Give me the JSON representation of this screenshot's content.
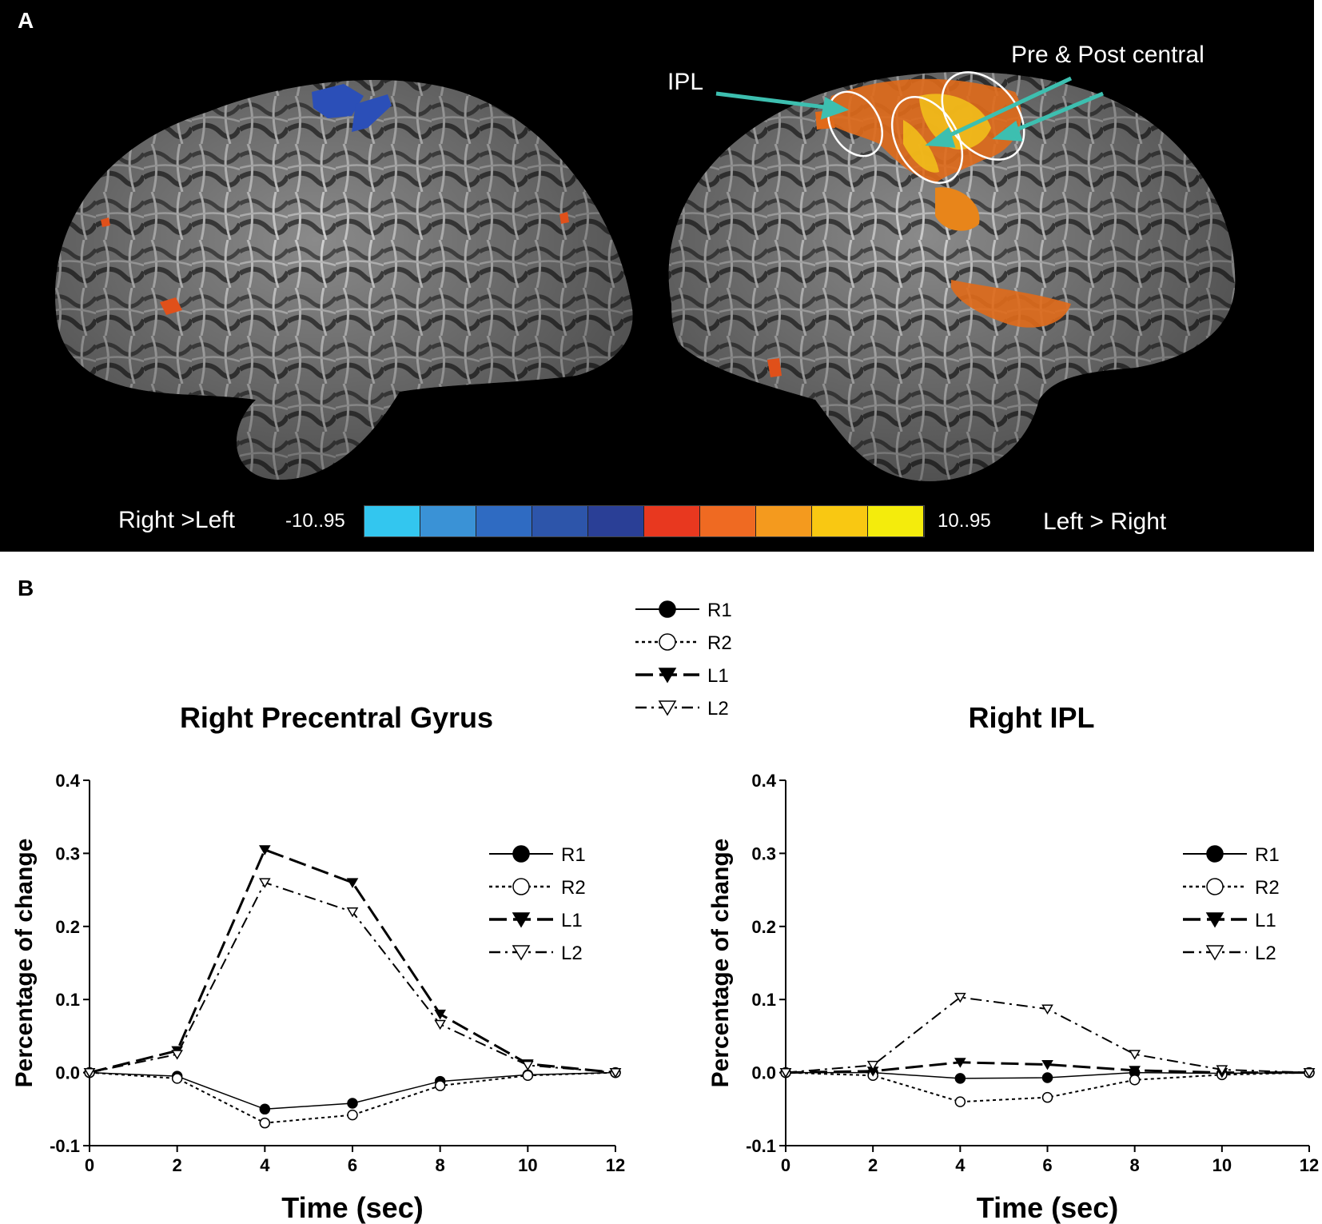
{
  "panels": {
    "a_letter": "A",
    "b_letter": "B"
  },
  "panel_a": {
    "annotations": {
      "ipl": "IPL",
      "pre_post": "Pre & Post central"
    },
    "colorbar": {
      "left_label": "Right >Left",
      "min_value": "-10..95",
      "max_value": "10..95",
      "right_label": "Left > Right",
      "colors": [
        "#33c6ef",
        "#3a92d6",
        "#2f6bc2",
        "#2d55aa",
        "#2a3f96",
        "#e8381f",
        "#ef6a22",
        "#f49a1e",
        "#f9c812",
        "#f4ec0c"
      ]
    },
    "activation_colors": {
      "blue": "#2b4fb8",
      "orange": "#e06a1a",
      "yellow": "#f2c21a"
    },
    "arrow_color": "#3dbfb0"
  },
  "top_legend": [
    "R1",
    "R2",
    "L1",
    "L2"
  ],
  "chart_data": [
    {
      "type": "line",
      "title": "Right  Precentral Gyrus",
      "xlabel": "Time (sec)",
      "ylabel": "Percentage of change",
      "x": [
        0,
        2,
        4,
        6,
        8,
        10,
        12
      ],
      "xlim": [
        0,
        12
      ],
      "ylim": [
        -0.1,
        0.4
      ],
      "xticks": [
        "0",
        "2",
        "4",
        "6",
        "8",
        "10",
        "12"
      ],
      "yticks": [
        "-0.1",
        "0.0",
        "0.1",
        "0.2",
        "0.3",
        "0.4"
      ],
      "legend": "top-right",
      "series": [
        {
          "name": "R1",
          "values": [
            0,
            -0.005,
            -0.05,
            -0.042,
            -0.012,
            -0.003,
            0
          ]
        },
        {
          "name": "R2",
          "values": [
            0,
            -0.008,
            -0.069,
            -0.058,
            -0.018,
            -0.004,
            0
          ]
        },
        {
          "name": "L1",
          "values": [
            0,
            0.03,
            0.305,
            0.26,
            0.08,
            0.012,
            0
          ]
        },
        {
          "name": "L2",
          "values": [
            0,
            0.025,
            0.26,
            0.22,
            0.066,
            0.01,
            0
          ]
        }
      ]
    },
    {
      "type": "line",
      "title": "Right  IPL",
      "xlabel": "Time (sec)",
      "ylabel": "Percentage of change",
      "x": [
        0,
        2,
        4,
        6,
        8,
        10,
        12
      ],
      "xlim": [
        0,
        12
      ],
      "ylim": [
        -0.1,
        0.4
      ],
      "xticks": [
        "0",
        "2",
        "4",
        "6",
        "8",
        "10",
        "12"
      ],
      "yticks": [
        "-0.1",
        "0.0",
        "0.1",
        "0.2",
        "0.3",
        "0.4"
      ],
      "legend": "top-right",
      "series": [
        {
          "name": "R1",
          "values": [
            0,
            0,
            -0.008,
            -0.007,
            0,
            -0.001,
            0
          ]
        },
        {
          "name": "R2",
          "values": [
            0,
            -0.004,
            -0.04,
            -0.034,
            -0.01,
            -0.003,
            0
          ]
        },
        {
          "name": "L1",
          "values": [
            0,
            0.002,
            0.014,
            0.011,
            0.003,
            0,
            0
          ]
        },
        {
          "name": "L2",
          "values": [
            0,
            0.01,
            0.103,
            0.087,
            0.025,
            0.004,
            0
          ]
        }
      ]
    }
  ]
}
